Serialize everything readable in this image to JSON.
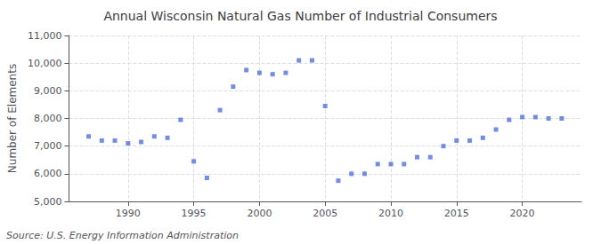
{
  "chart_data": {
    "type": "scatter",
    "title": "Annual Wisconsin Natural Gas Number of Industrial Consumers",
    "ylabel": "Number of Elements",
    "source": "Source: U.S. Energy Information Administration",
    "marker": "square",
    "x": [
      1987,
      1988,
      1989,
      1990,
      1991,
      1992,
      1993,
      1994,
      1995,
      1996,
      1997,
      1998,
      1999,
      2000,
      2001,
      2002,
      2003,
      2004,
      2005,
      2006,
      2007,
      2008,
      2009,
      2010,
      2011,
      2012,
      2013,
      2014,
      2015,
      2016,
      2017,
      2018,
      2019,
      2020,
      2021,
      2022,
      2023
    ],
    "values": [
      7350,
      7200,
      7200,
      7100,
      7150,
      7350,
      7300,
      7950,
      6450,
      5850,
      8300,
      9150,
      9750,
      9650,
      9600,
      9650,
      10100,
      10100,
      8450,
      5750,
      6000,
      6000,
      6350,
      6350,
      6350,
      6600,
      6600,
      7000,
      7200,
      7200,
      7300,
      7600,
      7950,
      8050,
      8050,
      8000,
      8000
    ],
    "xlim": [
      1985.5,
      2024.5
    ],
    "ylim": [
      5000,
      11000
    ],
    "xticks": [
      1990,
      1995,
      2000,
      2005,
      2010,
      2015,
      2020
    ],
    "yticks": [
      {
        "value": 5000,
        "label": "5,000"
      },
      {
        "value": 6000,
        "label": "6,000"
      },
      {
        "value": 7000,
        "label": "7,000"
      },
      {
        "value": 8000,
        "label": "8,000"
      },
      {
        "value": 9000,
        "label": "9,000"
      },
      {
        "value": 10000,
        "label": "10,000"
      },
      {
        "value": 11000,
        "label": "11,000"
      }
    ],
    "grid": true
  }
}
